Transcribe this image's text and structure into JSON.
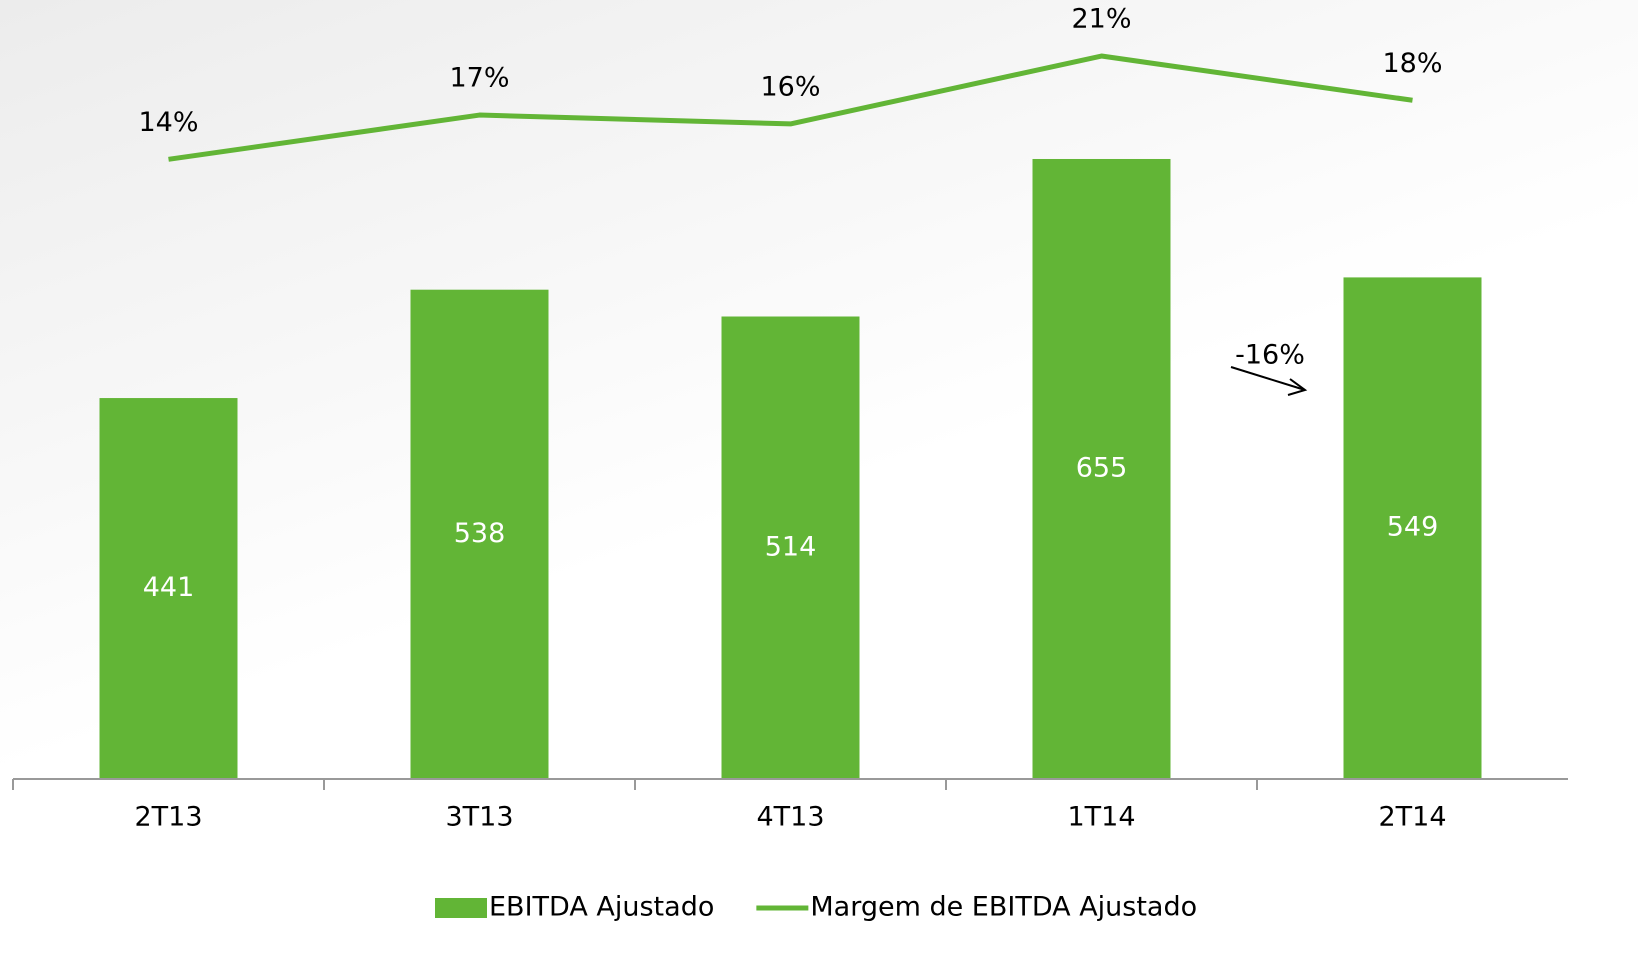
{
  "chart_data": {
    "type": "bar-line",
    "categories": [
      "2T13",
      "3T13",
      "4T13",
      "1T14",
      "2T14"
    ],
    "series": [
      {
        "name": "EBITDA Ajustado",
        "type": "bar",
        "color": "#62b536",
        "values": [
          441,
          538,
          514,
          655,
          549
        ]
      },
      {
        "name": "Margem de EBITDA Ajustado",
        "type": "line",
        "axis": "y2",
        "color": "#62b536",
        "values": [
          14,
          17,
          16.4,
          21,
          18
        ],
        "value_labels": [
          "14%",
          "17%",
          "16%",
          "21%",
          "18%"
        ]
      }
    ],
    "ylim": [
      100,
      800
    ],
    "y2lim": [
      -28,
      25
    ],
    "annotation": "-16%",
    "legend": "bottom"
  }
}
